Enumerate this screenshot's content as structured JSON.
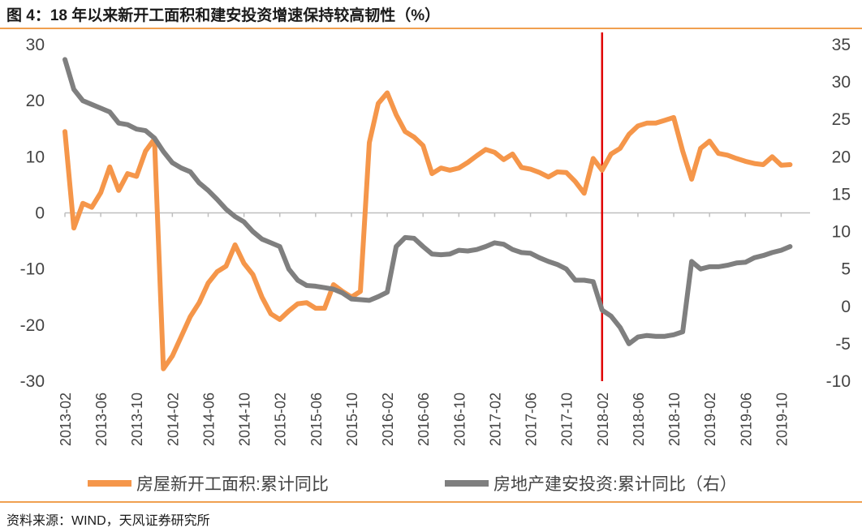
{
  "header": {
    "title": "图 4：18 年以来新开工面积和建安投资增速保持较高韧性（%）"
  },
  "footer": {
    "source": "资料来源：WIND，天风证券研究所"
  },
  "colors": {
    "orange": "#F5964A",
    "gray": "#7F7F7F",
    "marker": "#E00000",
    "rule": "#F0A050"
  },
  "chart_data": {
    "type": "line",
    "title": "18 年以来新开工面积和建安投资增速保持较高韧性（%）",
    "ylim_left": [
      -30,
      30
    ],
    "yticks_left": [
      30,
      20,
      10,
      0,
      -10,
      -20,
      -30
    ],
    "ylim_right": [
      -10,
      35
    ],
    "yticks_right": [
      35,
      30,
      25,
      20,
      15,
      10,
      5,
      0,
      -5,
      -10
    ],
    "xtick_labels": [
      "2013-02",
      "2013-06",
      "2013-10",
      "2014-02",
      "2014-06",
      "2014-10",
      "2015-02",
      "2015-06",
      "2015-10",
      "2016-02",
      "2016-06",
      "2016-10",
      "2017-02",
      "2017-06",
      "2017-10",
      "2018-02",
      "2018-06",
      "2018-10",
      "2019-02",
      "2019-06",
      "2019-10"
    ],
    "x_start": "2013-02",
    "vline_at": "2018-02",
    "series": [
      {
        "name": "房屋新开工面积:累计同比",
        "axis": "left",
        "start_index": 0,
        "values": [
          14.5,
          -2.7,
          1.7,
          1.0,
          3.6,
          8.2,
          4.0,
          7.0,
          6.5,
          11.0,
          13.2,
          -27.8,
          -25.5,
          -22.0,
          -18.5,
          -16.0,
          -12.5,
          -10.5,
          -9.5,
          -5.7,
          -9.0,
          -11.0,
          -15.0,
          -18.0,
          -19.0,
          -17.5,
          -16.2,
          -16.0,
          -17.0,
          -17.0,
          -12.8,
          -14.0,
          -15.0,
          -14.0,
          12.5,
          19.5,
          21.4,
          17.5,
          14.5,
          13.5,
          12.0,
          7.0,
          8.0,
          7.6,
          8.0,
          9.0,
          10.2,
          11.3,
          10.8,
          9.5,
          10.5,
          8.1,
          7.8,
          7.2,
          6.4,
          7.3,
          7.2,
          5.6,
          3.5,
          9.7,
          7.6,
          10.5,
          11.5,
          14.0,
          15.5,
          16.0,
          16.0,
          16.5,
          17.0,
          11.0,
          6.0,
          11.5,
          12.8,
          10.6,
          10.3,
          9.7,
          9.2,
          8.8,
          8.6,
          10.0,
          8.5,
          8.6
        ]
      },
      {
        "name": "房地产建安投资:累计同比（右）",
        "axis": "right",
        "start_index": 0,
        "values": [
          33.0,
          29.0,
          27.5,
          27.0,
          26.5,
          26.0,
          24.5,
          24.3,
          23.7,
          23.5,
          22.5,
          20.7,
          19.2,
          18.5,
          18.0,
          16.5,
          15.5,
          14.3,
          13.0,
          12.0,
          11.3,
          10.0,
          9.0,
          8.5,
          8.0,
          5.0,
          3.5,
          2.8,
          2.7,
          2.5,
          2.3,
          1.8,
          1.0,
          0.9,
          0.8,
          1.3,
          1.9,
          8.0,
          9.2,
          9.1,
          8.0,
          7.0,
          6.9,
          7.0,
          7.5,
          7.4,
          7.6,
          8.0,
          8.5,
          8.3,
          7.6,
          7.2,
          7.1,
          6.5,
          6.0,
          5.6,
          5.0,
          3.5,
          3.5,
          3.3,
          -0.5,
          -1.3,
          -2.8,
          -5.0,
          -4.1,
          -3.9,
          -4.0,
          -4.0,
          -3.8,
          -3.4,
          6.0,
          5.0,
          5.3,
          5.3,
          5.5,
          5.8,
          5.9,
          6.5,
          6.8,
          7.2,
          7.5,
          8.0
        ]
      }
    ]
  }
}
